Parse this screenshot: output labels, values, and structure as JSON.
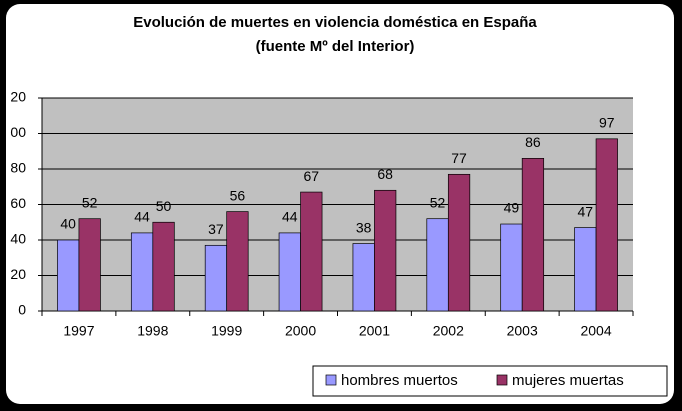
{
  "chart_data": {
    "type": "bar",
    "title": "Evolución de muertes en violencia doméstica en España",
    "subtitle": "(fuente Mº del Interior)",
    "categories": [
      "1997",
      "1998",
      "1999",
      "2000",
      "2001",
      "2002",
      "2003",
      "2004"
    ],
    "series": [
      {
        "name": "hombres muertos",
        "color": "#9999ff",
        "values": [
          40,
          44,
          37,
          44,
          38,
          52,
          49,
          47
        ]
      },
      {
        "name": "mujeres muertas",
        "color": "#993366",
        "values": [
          52,
          50,
          56,
          67,
          68,
          77,
          86,
          97
        ]
      }
    ],
    "ylim": [
      0,
      120
    ],
    "yticks": [
      0,
      20,
      40,
      60,
      80,
      {
        "value": 100,
        "label": "00"
      },
      {
        "value": 120,
        "label": "20"
      }
    ],
    "grid": true,
    "legend": "bottom-right"
  }
}
